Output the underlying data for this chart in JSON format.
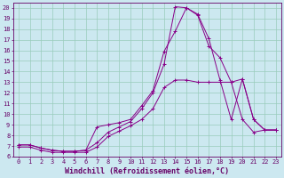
{
  "xlabel": "Windchill (Refroidissement éolien,°C)",
  "xlim": [
    -0.5,
    23.5
  ],
  "ylim": [
    6,
    20.5
  ],
  "xticks": [
    0,
    1,
    2,
    3,
    4,
    5,
    6,
    7,
    8,
    9,
    10,
    11,
    12,
    13,
    14,
    15,
    16,
    17,
    18,
    19,
    20,
    21,
    22,
    23
  ],
  "yticks": [
    6,
    7,
    8,
    9,
    10,
    11,
    12,
    13,
    14,
    15,
    16,
    17,
    18,
    19,
    20
  ],
  "background_color": "#cce8f0",
  "line_color": "#880088",
  "curve1_x": [
    0,
    1,
    2,
    3,
    4,
    5,
    6,
    7,
    8,
    9,
    10,
    11,
    12,
    13,
    14,
    15,
    16,
    17,
    18,
    19,
    20,
    21,
    22,
    23
  ],
  "curve1_y": [
    7.1,
    7.1,
    6.8,
    6.6,
    6.5,
    6.5,
    6.6,
    7.3,
    8.3,
    8.8,
    9.3,
    10.5,
    12.0,
    14.7,
    20.1,
    20.0,
    19.4,
    17.1,
    13.2,
    9.5,
    13.3,
    9.5,
    8.5,
    8.5
  ],
  "curve2_x": [
    0,
    1,
    2,
    3,
    4,
    5,
    6,
    7,
    8,
    9,
    10,
    11,
    12,
    13,
    14,
    15,
    16,
    17,
    18,
    19,
    20,
    21,
    22,
    23
  ],
  "curve2_y": [
    6.9,
    6.9,
    6.6,
    6.4,
    6.4,
    6.4,
    6.4,
    6.9,
    7.9,
    8.4,
    8.9,
    9.5,
    10.5,
    12.5,
    13.2,
    13.2,
    13.0,
    13.0,
    13.0,
    13.0,
    9.5,
    8.3,
    8.5,
    8.5
  ],
  "curve3_x": [
    0,
    1,
    2,
    3,
    4,
    5,
    6,
    7,
    8,
    9,
    10,
    11,
    12,
    13,
    14,
    15,
    16,
    17,
    18,
    19,
    20,
    21,
    22,
    23
  ],
  "curve3_y": [
    7.1,
    7.1,
    6.8,
    6.6,
    6.5,
    6.5,
    6.6,
    8.8,
    9.0,
    9.2,
    9.5,
    10.8,
    12.2,
    15.9,
    17.8,
    20.0,
    19.3,
    16.4,
    15.3,
    13.0,
    13.3,
    9.5,
    8.5,
    8.5
  ],
  "grid_color": "#99ccbb",
  "tick_fontsize": 5.0,
  "label_fontsize": 6.0
}
